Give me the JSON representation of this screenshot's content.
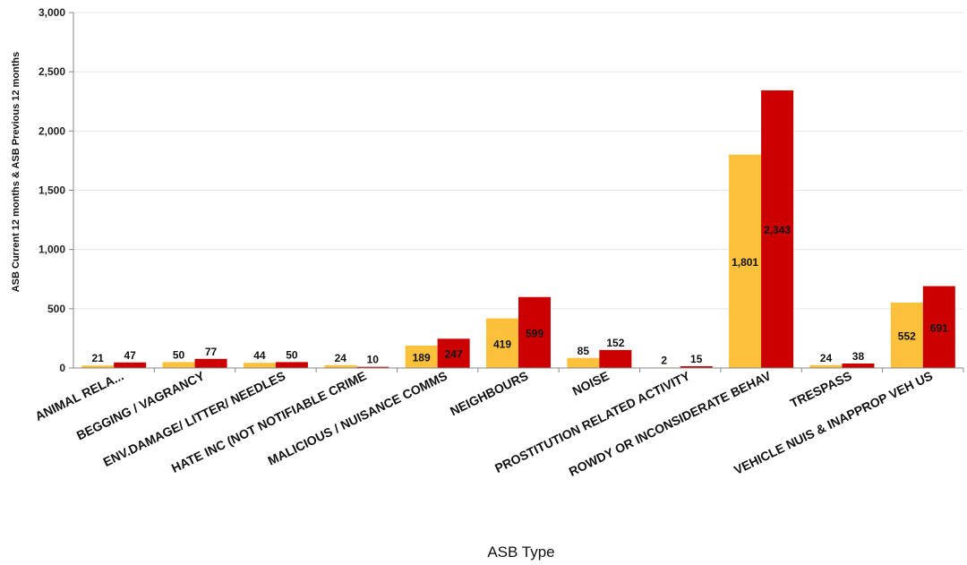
{
  "chart_data": {
    "type": "bar",
    "title": "",
    "xlabel": "ASB Type",
    "ylabel": "ASB Current 12 months & ASB Previous 12 months",
    "ylim": [
      0,
      3000
    ],
    "yticks": [
      0,
      500,
      1000,
      1500,
      2000,
      2500,
      3000
    ],
    "ytick_labels": [
      "0",
      "500",
      "1,000",
      "1,500",
      "2,000",
      "2,500",
      "3,000"
    ],
    "grid": true,
    "categories": [
      "ANIMAL RELA...",
      "BEGGING / VAGRANCY",
      "ENV.DAMAGE/ LITTER/ NEEDLES",
      "HATE INC (NOT NOTIFIABLE CRIME",
      "MALICIOUS / NUISANCE COMMS",
      "NEIGHBOURS",
      "NOISE",
      "PROSTITUTION RELATED ACTIVITY",
      "ROWDY OR INCONSIDERATE BEHAV",
      "TRESPASS",
      "VEHICLE NUIS & INAPPROP VEH US"
    ],
    "series": [
      {
        "color": "#FBC13B",
        "values": [
          21,
          50,
          44,
          24,
          189,
          419,
          85,
          2,
          1801,
          24,
          552
        ],
        "labels": [
          "21",
          "50",
          "44",
          "24",
          "189",
          "419",
          "85",
          "2",
          "1,801",
          "24",
          "552"
        ]
      },
      {
        "color": "#CC0000",
        "values": [
          47,
          77,
          50,
          10,
          247,
          599,
          152,
          15,
          2343,
          38,
          691
        ],
        "labels": [
          "47",
          "77",
          "50",
          "10",
          "247",
          "599",
          "152",
          "15",
          "2,343",
          "38",
          "691"
        ]
      }
    ]
  }
}
